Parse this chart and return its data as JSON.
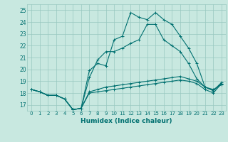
{
  "title": "",
  "xlabel": "Humidex (Indice chaleur)",
  "xlim": [
    -0.5,
    23.5
  ],
  "ylim": [
    16.5,
    25.5
  ],
  "yticks": [
    17,
    18,
    19,
    20,
    21,
    22,
    23,
    24,
    25
  ],
  "xticks": [
    0,
    1,
    2,
    3,
    4,
    5,
    6,
    7,
    8,
    9,
    10,
    11,
    12,
    13,
    14,
    15,
    16,
    17,
    18,
    19,
    20,
    21,
    22,
    23
  ],
  "bg_color": "#c8e8e0",
  "grid_color": "#98c8c0",
  "line_color": "#007070",
  "lines": [
    {
      "x": [
        0,
        1,
        2,
        3,
        4,
        5,
        6,
        7,
        8,
        9,
        10,
        11,
        12,
        13,
        14,
        15,
        16,
        17,
        18,
        19,
        20,
        21,
        22,
        23
      ],
      "y": [
        18.3,
        18.1,
        17.8,
        17.8,
        17.5,
        16.6,
        16.7,
        19.9,
        20.5,
        20.3,
        22.5,
        22.8,
        24.8,
        24.4,
        24.2,
        24.8,
        24.2,
        23.8,
        22.8,
        21.8,
        20.5,
        18.5,
        18.2,
        18.8
      ]
    },
    {
      "x": [
        0,
        1,
        2,
        3,
        4,
        5,
        6,
        7,
        8,
        9,
        10,
        11,
        12,
        13,
        14,
        15,
        16,
        17,
        18,
        19,
        20,
        21,
        22,
        23
      ],
      "y": [
        18.3,
        18.1,
        17.8,
        17.8,
        17.5,
        16.6,
        16.7,
        19.3,
        20.8,
        21.5,
        21.5,
        21.8,
        22.2,
        22.5,
        23.8,
        23.8,
        22.5,
        22.0,
        21.5,
        20.5,
        19.2,
        18.5,
        18.3,
        18.7
      ]
    },
    {
      "x": [
        0,
        1,
        2,
        3,
        4,
        5,
        6,
        7,
        8,
        9,
        10,
        11,
        12,
        13,
        14,
        15,
        16,
        17,
        18,
        19,
        20,
        21,
        22,
        23
      ],
      "y": [
        18.3,
        18.1,
        17.8,
        17.8,
        17.5,
        16.6,
        16.7,
        18.0,
        18.1,
        18.2,
        18.3,
        18.4,
        18.5,
        18.6,
        18.7,
        18.8,
        18.9,
        19.0,
        19.1,
        19.0,
        18.8,
        18.3,
        18.0,
        18.8
      ]
    },
    {
      "x": [
        0,
        1,
        2,
        3,
        4,
        5,
        6,
        7,
        8,
        9,
        10,
        11,
        12,
        13,
        14,
        15,
        16,
        17,
        18,
        19,
        20,
        21,
        22,
        23
      ],
      "y": [
        18.3,
        18.1,
        17.8,
        17.8,
        17.5,
        16.6,
        16.7,
        18.1,
        18.3,
        18.5,
        18.6,
        18.7,
        18.8,
        18.9,
        19.0,
        19.1,
        19.2,
        19.3,
        19.4,
        19.2,
        19.0,
        18.5,
        18.2,
        18.9
      ]
    }
  ]
}
